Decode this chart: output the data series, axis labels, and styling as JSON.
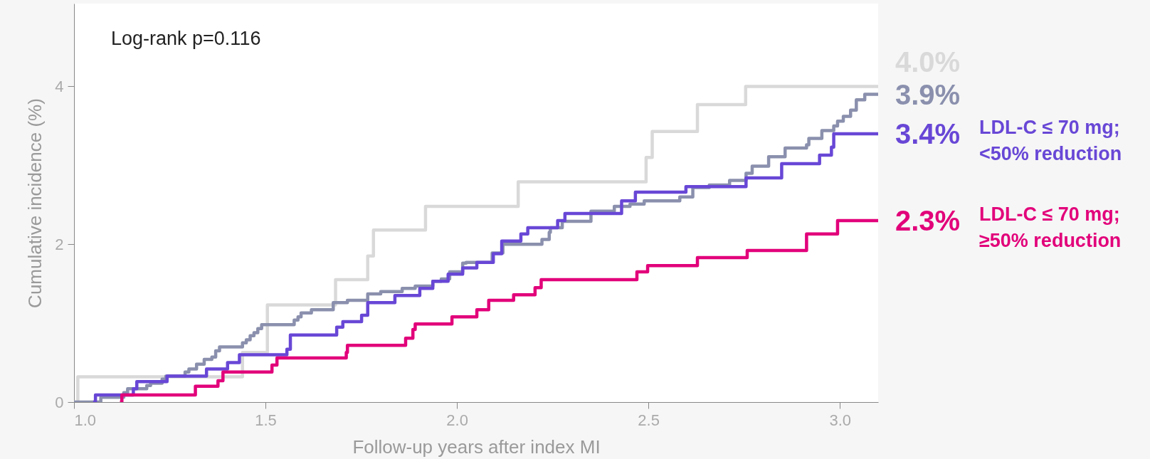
{
  "chart_data": {
    "type": "step",
    "xlabel": "Follow-up years after index MI",
    "ylabel": "Cumulative incidence (%)",
    "annotations": [
      "Log-rank p=0.116"
    ],
    "xlim": [
      1.0,
      3.1
    ],
    "xticks": [
      {
        "value": 1,
        "label": "1.0"
      },
      1.5,
      {
        "value": 2,
        "label": "2.0"
      },
      2.5,
      {
        "value": 3,
        "label": "3.0"
      }
    ],
    "ylim": [
      0,
      5.05
    ],
    "yticks": [
      0,
      2,
      4
    ],
    "line_style": "solid",
    "series": [
      {
        "color": "#d9d9d9",
        "x": [
          1.0,
          1.01,
          1.44,
          1.505,
          1.683,
          1.767,
          1.782,
          1.918,
          2.16,
          2.494,
          2.51,
          2.628,
          2.754,
          3.1
        ],
        "values": [
          0,
          0.32,
          0.63,
          1.23,
          1.55,
          1.85,
          2.18,
          2.48,
          2.79,
          3.1,
          3.43,
          3.77,
          4.0,
          4.0
        ],
        "value_labels": [
          null,
          null,
          null,
          null,
          null,
          null,
          null,
          null,
          null,
          null,
          null,
          null,
          null,
          "4.0%"
        ]
      },
      {
        "color": "#8a90ad",
        "x": [
          1.0,
          1.07,
          1.13,
          1.14,
          1.19,
          1.2,
          1.23,
          1.24,
          1.29,
          1.3,
          1.32,
          1.34,
          1.36,
          1.37,
          1.38,
          1.44,
          1.45,
          1.46,
          1.47,
          1.48,
          1.49,
          1.575,
          1.585,
          1.593,
          1.62,
          1.677,
          1.714,
          1.767,
          1.801,
          1.857,
          1.891,
          1.937,
          1.959,
          1.981,
          2.015,
          2.024,
          2.092,
          2.12,
          2.222,
          2.241,
          2.244,
          2.275,
          2.35,
          2.411,
          2.452,
          2.489,
          2.582,
          2.616,
          2.659,
          2.712,
          2.755,
          2.771,
          2.814,
          2.857,
          2.913,
          2.919,
          2.953,
          2.984,
          2.994,
          3.009,
          3.028,
          3.043,
          3.065,
          3.1
        ],
        "values": [
          0,
          0.06,
          0.12,
          0.17,
          0.21,
          0.24,
          0.29,
          0.33,
          0.38,
          0.42,
          0.48,
          0.54,
          0.57,
          0.65,
          0.7,
          0.75,
          0.79,
          0.84,
          0.88,
          0.93,
          0.98,
          1.04,
          1.08,
          1.13,
          1.17,
          1.26,
          1.29,
          1.37,
          1.4,
          1.44,
          1.47,
          1.53,
          1.56,
          1.65,
          1.76,
          1.77,
          1.89,
          2.0,
          2.06,
          2.15,
          2.21,
          2.29,
          2.42,
          2.48,
          2.51,
          2.55,
          2.6,
          2.72,
          2.75,
          2.81,
          2.9,
          2.99,
          3.11,
          3.22,
          3.26,
          3.34,
          3.44,
          3.5,
          3.56,
          3.62,
          3.7,
          3.83,
          3.9,
          3.9
        ],
        "value_labels": [
          null,
          null,
          null,
          null,
          null,
          null,
          null,
          null,
          null,
          null,
          null,
          null,
          null,
          null,
          null,
          null,
          null,
          null,
          null,
          null,
          null,
          null,
          null,
          null,
          null,
          null,
          null,
          null,
          null,
          null,
          null,
          null,
          null,
          null,
          null,
          null,
          null,
          null,
          null,
          null,
          null,
          null,
          null,
          null,
          null,
          null,
          null,
          null,
          null,
          null,
          null,
          null,
          null,
          null,
          null,
          null,
          null,
          null,
          null,
          null,
          null,
          null,
          null,
          "3.9%"
        ]
      },
      {
        "name": "LDL-C ≤ 70 mg; <50% reduction",
        "color": "#6847d6",
        "x": [
          1.05,
          1.056,
          1.155,
          1.164,
          1.243,
          1.346,
          1.401,
          1.432,
          1.556,
          1.565,
          1.686,
          1.702,
          1.751,
          1.767,
          1.838,
          1.903,
          1.937,
          1.977,
          2.015,
          2.052,
          2.095,
          2.117,
          2.167,
          2.185,
          2.263,
          2.282,
          2.43,
          2.466,
          2.598,
          2.755,
          2.848,
          2.947,
          2.978,
          2.984,
          3.1
        ],
        "values": [
          0,
          0.09,
          0.17,
          0.26,
          0.33,
          0.42,
          0.5,
          0.6,
          0.67,
          0.85,
          0.95,
          1.02,
          1.1,
          1.26,
          1.35,
          1.44,
          1.53,
          1.62,
          1.7,
          1.77,
          1.88,
          2.04,
          2.13,
          2.21,
          2.3,
          2.39,
          2.55,
          2.66,
          2.73,
          2.84,
          3.02,
          3.13,
          3.23,
          3.4,
          3.4
        ],
        "value_labels": [
          null,
          null,
          null,
          null,
          null,
          null,
          null,
          null,
          null,
          null,
          null,
          null,
          null,
          null,
          null,
          null,
          null,
          null,
          null,
          null,
          null,
          null,
          null,
          null,
          null,
          null,
          null,
          null,
          null,
          null,
          null,
          null,
          null,
          null,
          "3.4%"
        ]
      },
      {
        "name": "LDL-C ≤ 70 mg; ≥50% reduction",
        "color": "#e2007a",
        "x": [
          1.12,
          1.125,
          1.317,
          1.376,
          1.389,
          1.517,
          1.53,
          1.711,
          1.714,
          1.866,
          1.885,
          1.891,
          1.987,
          2.052,
          2.083,
          2.148,
          2.204,
          2.22,
          2.47,
          2.498,
          2.628,
          2.758,
          2.913,
          2.994,
          3.1
        ],
        "values": [
          0,
          0.09,
          0.2,
          0.27,
          0.38,
          0.47,
          0.56,
          0.63,
          0.72,
          0.81,
          0.92,
          0.99,
          1.08,
          1.17,
          1.29,
          1.36,
          1.45,
          1.55,
          1.65,
          1.73,
          1.83,
          1.92,
          2.13,
          2.3,
          2.3
        ],
        "value_labels": [
          null,
          null,
          null,
          null,
          null,
          null,
          null,
          null,
          null,
          null,
          null,
          null,
          null,
          null,
          null,
          null,
          null,
          null,
          null,
          null,
          null,
          null,
          null,
          null,
          "2.3%"
        ]
      }
    ]
  }
}
